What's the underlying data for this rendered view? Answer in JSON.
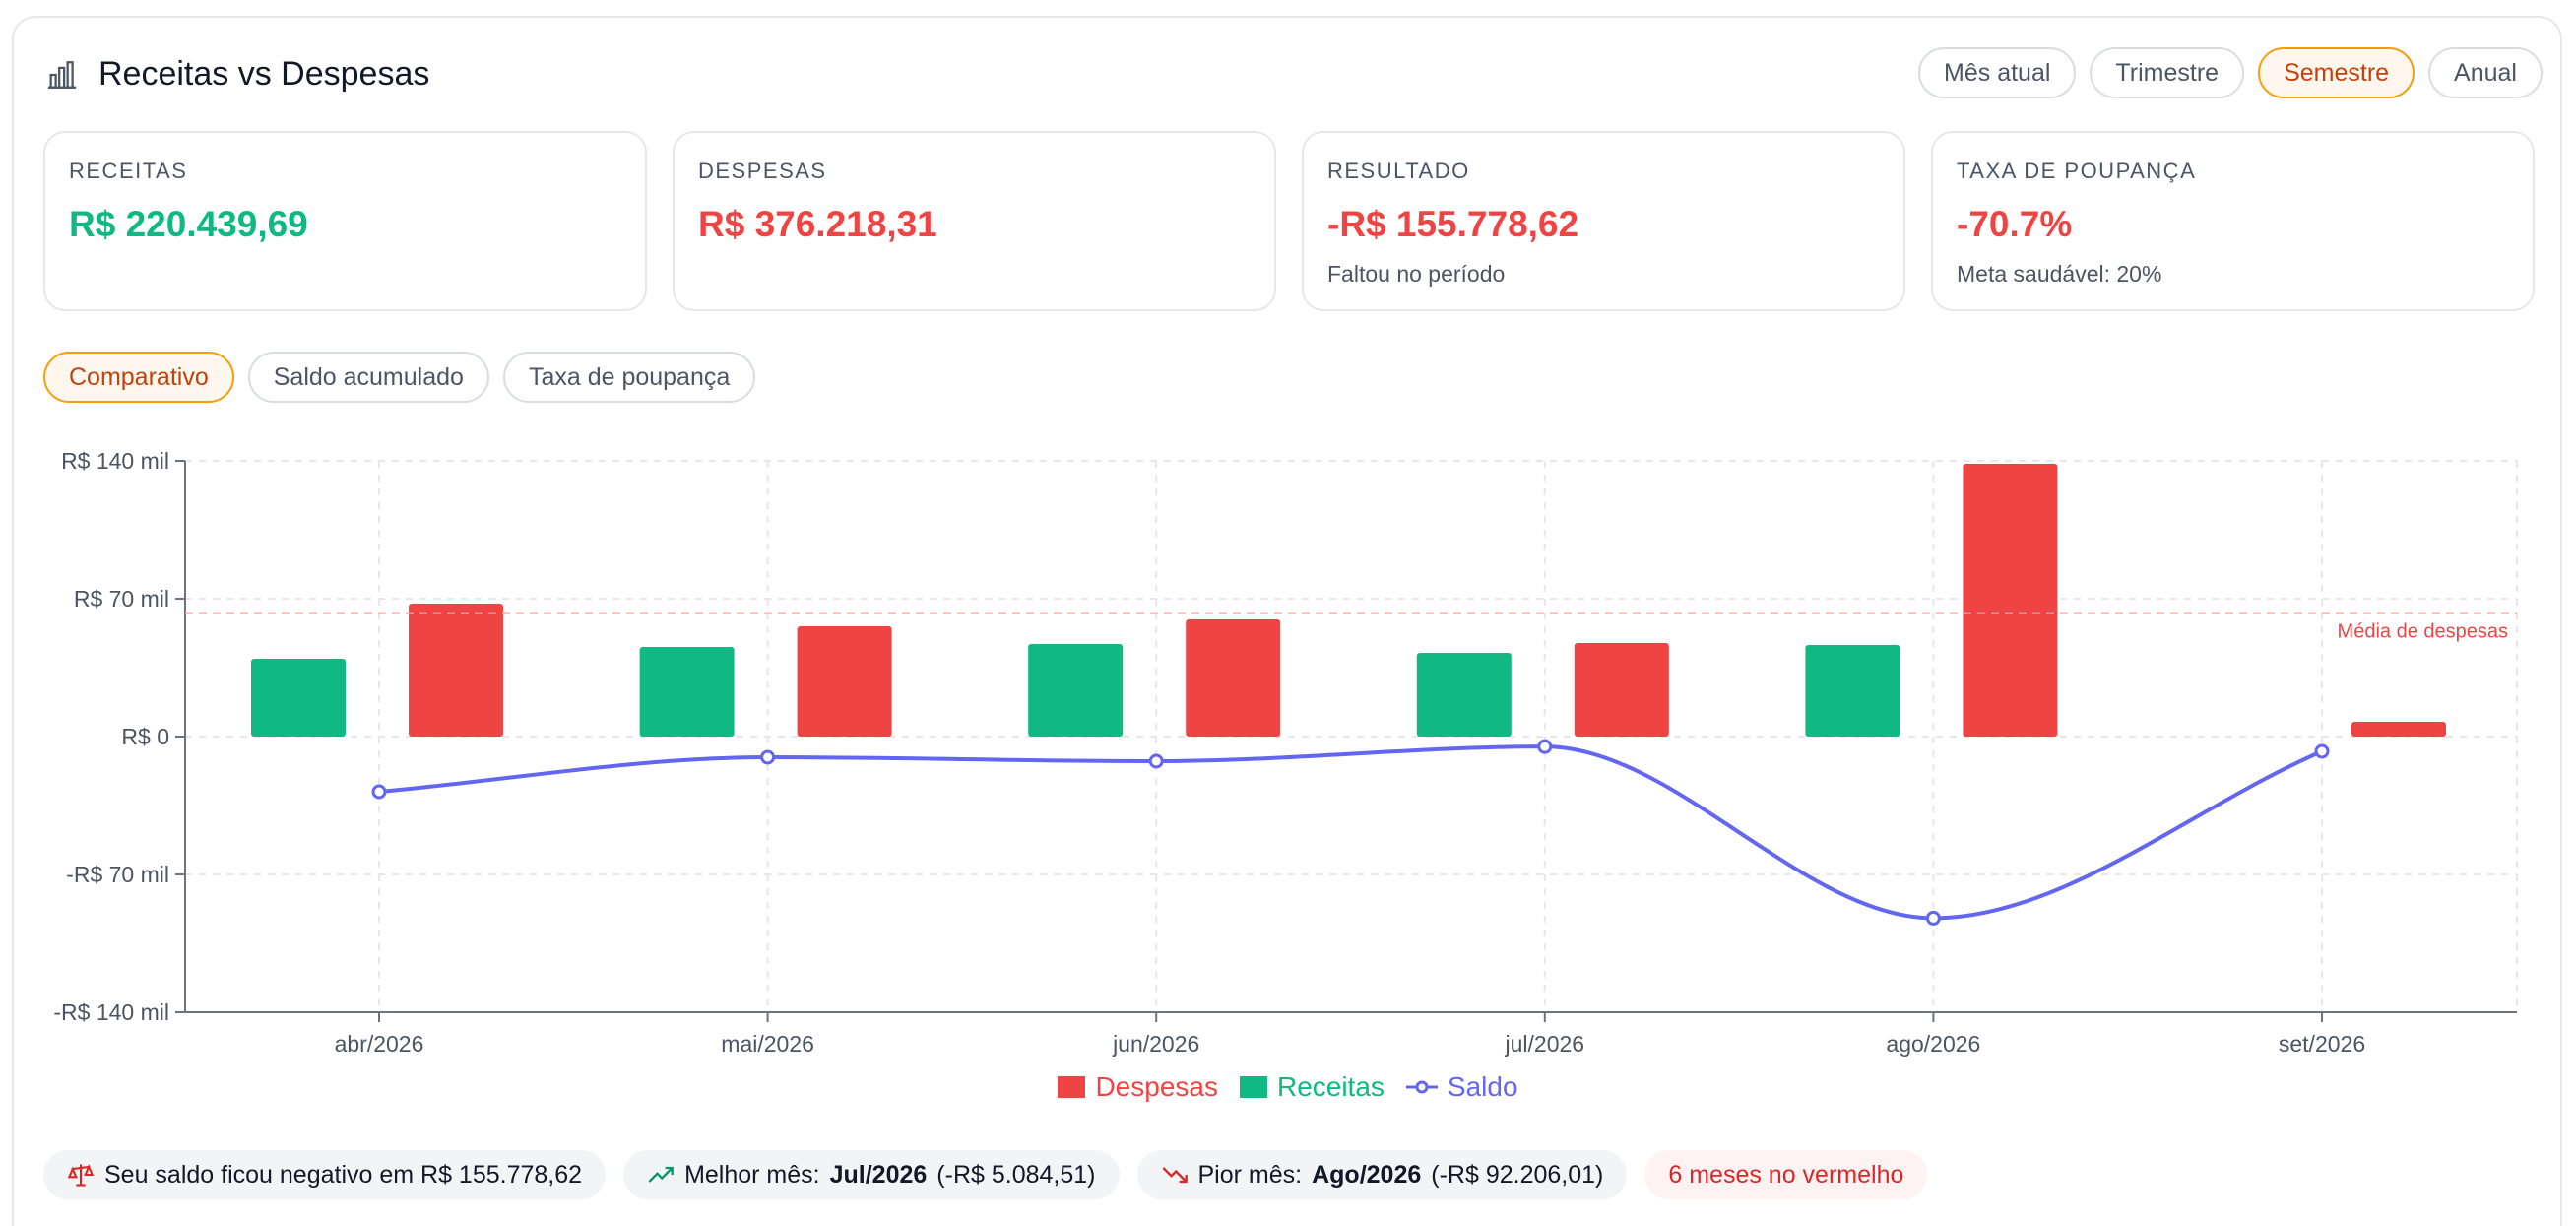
{
  "header": {
    "title": "Receitas vs Despesas",
    "icon": "bar-chart-icon",
    "periods": [
      "Mês atual",
      "Trimestre",
      "Semestre",
      "Anual"
    ],
    "active_period": "Semestre"
  },
  "kpis": [
    {
      "label": "RECEITAS",
      "value": "R$ 220.439,69",
      "sub": "",
      "tone": "green"
    },
    {
      "label": "DESPESAS",
      "value": "R$ 376.218,31",
      "sub": "",
      "tone": "red"
    },
    {
      "label": "RESULTADO",
      "value": "-R$ 155.778,62",
      "sub": "Faltou no período",
      "tone": "red"
    },
    {
      "label": "TAXA DE POUPANÇA",
      "value": "-70.7%",
      "sub": "Meta saudável: 20%",
      "tone": "red"
    }
  ],
  "views": {
    "items": [
      "Comparativo",
      "Saldo acumulado",
      "Taxa de poupança"
    ],
    "active": "Comparativo"
  },
  "colors": {
    "receitas": "#10b981",
    "despesas": "#ef4444",
    "saldo": "#6366f1",
    "accent": "#f59e0b"
  },
  "chart_data": {
    "type": "bar",
    "categories": [
      "abr/2026",
      "mai/2026",
      "jun/2026",
      "jul/2026",
      "ago/2026",
      "set/2026"
    ],
    "series": [
      {
        "name": "Receitas",
        "type": "bar",
        "values": [
          39500,
          45500,
          47000,
          42500,
          46500,
          0
        ]
      },
      {
        "name": "Despesas",
        "type": "bar",
        "values": [
          67500,
          56000,
          59500,
          47500,
          138500,
          7500
        ]
      },
      {
        "name": "Saldo",
        "type": "line",
        "values": [
          -28000,
          -10500,
          -12500,
          -5084.51,
          -92206.01,
          -7500
        ]
      }
    ],
    "reference_line": {
      "label": "Média de despesas",
      "value": 62703.05
    },
    "y_ticks": [
      {
        "value": 140000,
        "label": "R$ 140 mil"
      },
      {
        "value": 70000,
        "label": "R$ 70 mil"
      },
      {
        "value": 0,
        "label": "R$ 0"
      },
      {
        "value": -70000,
        "label": "-R$ 70 mil"
      },
      {
        "value": -140000,
        "label": "-R$ 140 mil"
      }
    ],
    "ylim": [
      -140000,
      140000
    ],
    "grid": true,
    "legend_position": "bottom"
  },
  "legend": [
    {
      "name": "Despesas",
      "color": "#ef4444",
      "shape": "box"
    },
    {
      "name": "Receitas",
      "color": "#10b981",
      "shape": "box"
    },
    {
      "name": "Saldo",
      "color": "#6366f1",
      "shape": "line"
    }
  ],
  "footer": {
    "negative_text": "Seu saldo ficou negativo em R$ 155.778,62",
    "best_label": "Melhor mês:",
    "best_month": "Jul/2026",
    "best_value": "(-R$ 5.084,51)",
    "worst_label": "Pior mês:",
    "worst_month": "Ago/2026",
    "worst_value": "(-R$ 92.206,01)",
    "red_months": "6 meses no vermelho"
  }
}
